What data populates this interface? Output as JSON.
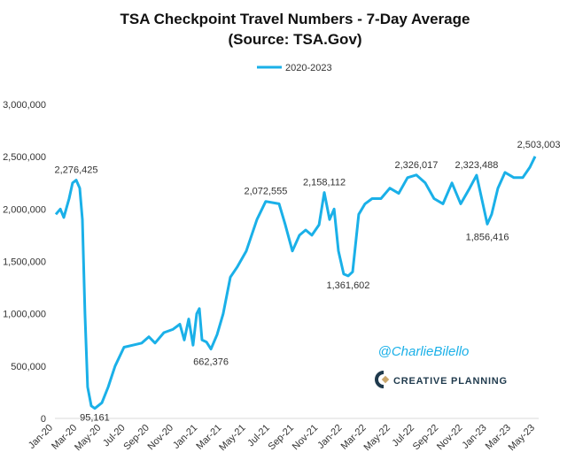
{
  "chart_data": {
    "type": "line",
    "title": "TSA Checkpoint Travel Numbers - 7-Day Average",
    "subtitle": "(Source: TSA.Gov)",
    "legend": {
      "position": "top",
      "entries": [
        "2020-2023"
      ]
    },
    "xlabel": "",
    "ylabel": "",
    "x_unit": "months since Jan-2020",
    "x_ticks": [
      "Jan-20",
      "Mar-20",
      "May-20",
      "Jul-20",
      "Sep-20",
      "Nov-20",
      "Jan-21",
      "Mar-21",
      "May-21",
      "Jul-21",
      "Sep-21",
      "Nov-21",
      "Jan-22",
      "Mar-22",
      "May-22",
      "Jul-22",
      "Sep-22",
      "Nov-22",
      "Jan-23",
      "Mar-23",
      "May-23"
    ],
    "y_ticks": [
      "0",
      "500,000",
      "1,000,000",
      "1,500,000",
      "2,000,000",
      "2,500,000",
      "3,000,000"
    ],
    "ylim": [
      0,
      3000000
    ],
    "grid": false,
    "series": [
      {
        "name": "2020-2023",
        "color": "#1ab0e8",
        "x": [
          0.37,
          0.74,
          1.03,
          1.47,
          1.76,
          2.06,
          2.35,
          2.57,
          2.79,
          3.01,
          3.31,
          3.6,
          4.19,
          4.71,
          5.29,
          6.03,
          6.76,
          7.5,
          8.09,
          8.6,
          9.34,
          10.07,
          10.66,
          11.03,
          11.4,
          11.76,
          12.06,
          12.28,
          12.5,
          12.87,
          13.24,
          13.75,
          14.26,
          14.85,
          15.44,
          16.18,
          17.06,
          17.79,
          18.9,
          19.41,
          20,
          20.59,
          21.1,
          21.62,
          22.21,
          22.65,
          23.09,
          23.46,
          23.82,
          24.26,
          24.63,
          25,
          25.51,
          26.03,
          26.62,
          27.35,
          28.09,
          28.82,
          29.56,
          30.29,
          31.03,
          31.76,
          32.5,
          33.24,
          33.97,
          34.71,
          35.29,
          35.81,
          36.18,
          36.54,
          37.06,
          37.65,
          38.38,
          39.12,
          39.71,
          40.15
        ],
        "values": [
          1950000,
          2000000,
          1920000,
          2100000,
          2250000,
          2276425,
          2200000,
          1900000,
          1000000,
          300000,
          120000,
          95161,
          150000,
          300000,
          500000,
          680000,
          700000,
          720000,
          780000,
          720000,
          820000,
          850000,
          900000,
          750000,
          950000,
          700000,
          1000000,
          1050000,
          750000,
          730000,
          662376,
          800000,
          1000000,
          1350000,
          1450000,
          1600000,
          1900000,
          2072555,
          2050000,
          1850000,
          1600000,
          1750000,
          1800000,
          1750000,
          1850000,
          2158112,
          1900000,
          2000000,
          1600000,
          1380000,
          1361602,
          1400000,
          1950000,
          2050000,
          2100000,
          2100000,
          2200000,
          2150000,
          2300000,
          2326017,
          2250000,
          2100000,
          2050000,
          2250000,
          2050000,
          2200000,
          2323488,
          2050000,
          1856416,
          1950000,
          2200000,
          2350000,
          2300000,
          2300000,
          2400000,
          2503003
        ]
      }
    ],
    "annotations": [
      {
        "text": "2,276,425",
        "x": 2.06,
        "value": 2276425
      },
      {
        "text": "95,161",
        "x": 3.6,
        "value": 95161
      },
      {
        "text": "662,376",
        "x": 13.24,
        "value": 662376
      },
      {
        "text": "2,072,555",
        "x": 17.79,
        "value": 2072555
      },
      {
        "text": "2,158,112",
        "x": 22.65,
        "value": 2158112
      },
      {
        "text": "1,361,602",
        "x": 24.63,
        "value": 1361602
      },
      {
        "text": "2,326,017",
        "x": 30.29,
        "value": 2326017
      },
      {
        "text": "2,323,488",
        "x": 35.29,
        "value": 2323488
      },
      {
        "text": "1,856,416",
        "x": 36.18,
        "value": 1856416
      },
      {
        "text": "2,503,003",
        "x": 40.15,
        "value": 2503003
      }
    ]
  },
  "watermark": {
    "handle": "@CharlieBilello",
    "brand": "CREATIVE PLANNING"
  }
}
